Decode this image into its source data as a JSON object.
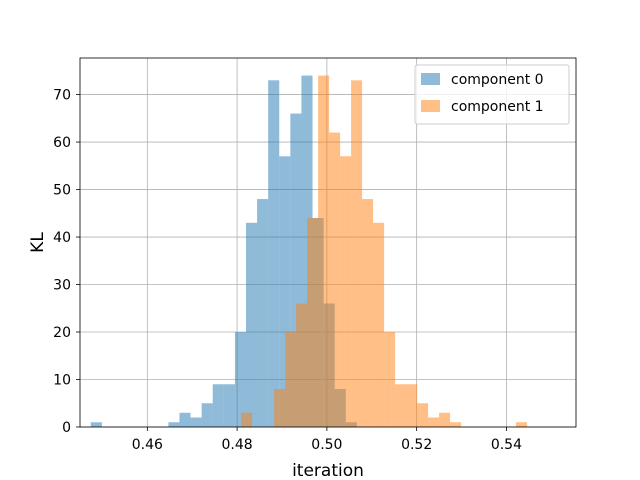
{
  "chart_data": {
    "type": "histogram",
    "xlabel": "iteration",
    "ylabel": "KL",
    "xlim": [
      0.445,
      0.5555
    ],
    "ylim": [
      0,
      77.7
    ],
    "xticks": [
      0.46,
      0.48,
      0.5,
      0.52,
      0.54
    ],
    "xtick_labels": [
      "0.46",
      "0.48",
      "0.50",
      "0.52",
      "0.54"
    ],
    "yticks": [
      0,
      10,
      20,
      30,
      40,
      50,
      60,
      70
    ],
    "ytick_labels": [
      "0",
      "10",
      "20",
      "30",
      "40",
      "50",
      "60",
      "70"
    ],
    "grid": true,
    "legend_position": "top-right",
    "alpha": 0.5,
    "series": [
      {
        "name": "component 0",
        "color": "#1f77b4",
        "bin_start": 0.4474,
        "bin_width": 0.00247,
        "counts": [
          1,
          0,
          0,
          0,
          0,
          0,
          0,
          1,
          3,
          2,
          5,
          9,
          9,
          20,
          43,
          48,
          73,
          57,
          66,
          74,
          44,
          26,
          8,
          1
        ]
      },
      {
        "name": "component 1",
        "color": "#ff7f0e",
        "bin_start": 0.4809,
        "bin_width": 0.00245,
        "counts": [
          3,
          0,
          0,
          8,
          20,
          26,
          44,
          74,
          62,
          57,
          73,
          48,
          43,
          20,
          9,
          9,
          5,
          2,
          3,
          1,
          0,
          0,
          0,
          0,
          0,
          1
        ]
      }
    ]
  }
}
